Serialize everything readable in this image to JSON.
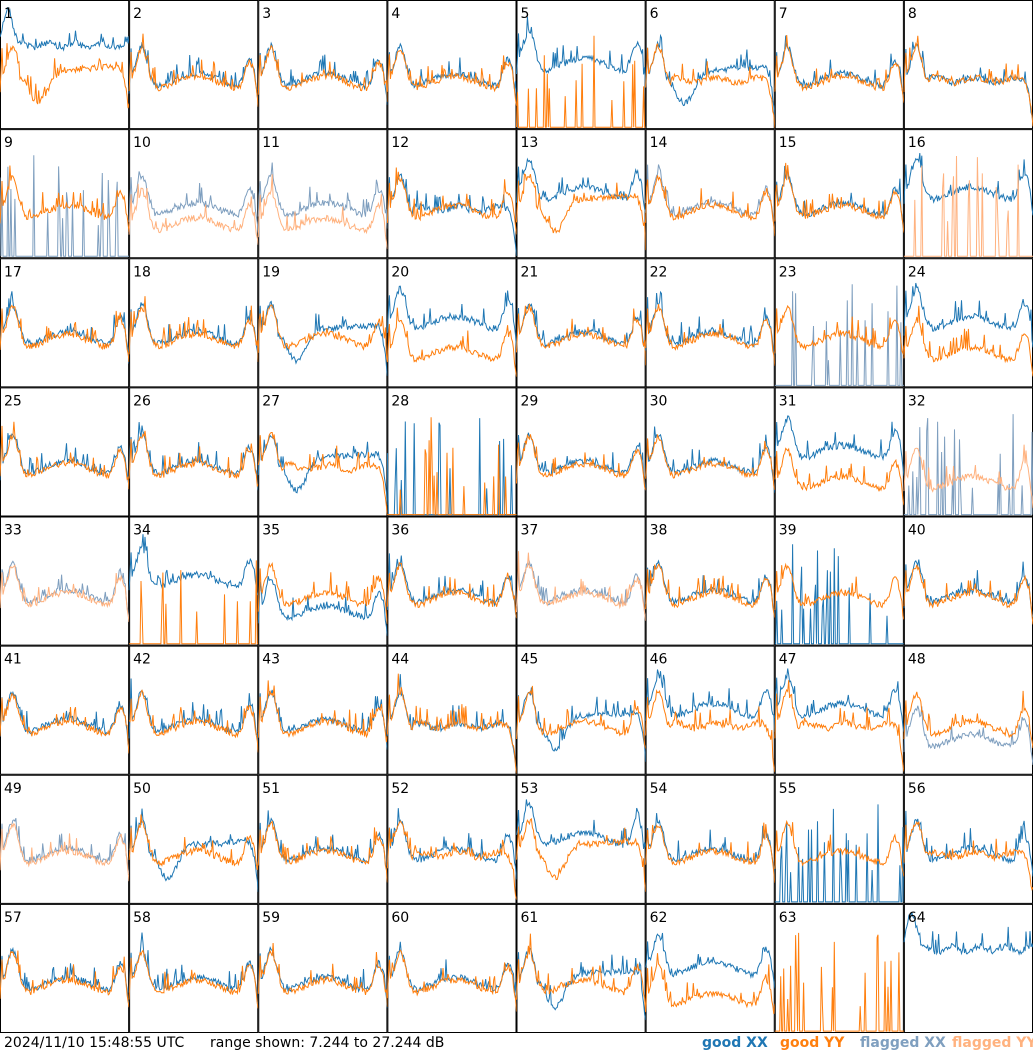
{
  "chart_data": {
    "type": "line",
    "title": "",
    "panels": [
      {
        "label": "1",
        "xx": "good",
        "yy": "good",
        "xx_shape": "hump",
        "yy_shape": "bathtub"
      },
      {
        "label": "2",
        "xx": "good",
        "yy": "good",
        "xx_shape": "normal",
        "yy_shape": "normal"
      },
      {
        "label": "3",
        "xx": "good",
        "yy": "good",
        "xx_shape": "normal",
        "yy_shape": "normal"
      },
      {
        "label": "4",
        "xx": "good",
        "yy": "good",
        "xx_shape": "normal",
        "yy_shape": "normal"
      },
      {
        "label": "5",
        "xx": "good",
        "yy": "good",
        "xx_shape": "raised",
        "yy_shape": "dead"
      },
      {
        "label": "6",
        "xx": "good",
        "yy": "good",
        "xx_shape": "bathtub",
        "yy_shape": "flat"
      },
      {
        "label": "7",
        "xx": "good",
        "yy": "good",
        "xx_shape": "normal",
        "yy_shape": "normal"
      },
      {
        "label": "8",
        "xx": "good",
        "yy": "good",
        "xx_shape": "flat",
        "yy_shape": "flat"
      },
      {
        "label": "9",
        "xx": "flagged",
        "yy": "good",
        "xx_shape": "dead",
        "yy_shape": "normal"
      },
      {
        "label": "10",
        "xx": "flagged",
        "yy": "flagged",
        "xx_shape": "normal",
        "yy_shape": "low"
      },
      {
        "label": "11",
        "xx": "flagged",
        "yy": "flagged",
        "xx_shape": "normal",
        "yy_shape": "low"
      },
      {
        "label": "12",
        "xx": "good",
        "yy": "good",
        "xx_shape": "flat",
        "yy_shape": "normal"
      },
      {
        "label": "13",
        "xx": "good",
        "yy": "good",
        "xx_shape": "raised",
        "yy_shape": "bathtub"
      },
      {
        "label": "14",
        "xx": "flagged",
        "yy": "good",
        "xx_shape": "normal",
        "yy_shape": "normal"
      },
      {
        "label": "15",
        "xx": "good",
        "yy": "good",
        "xx_shape": "normal",
        "yy_shape": "normal"
      },
      {
        "label": "16",
        "xx": "good",
        "yy": "flagged",
        "xx_shape": "raised",
        "yy_shape": "dead"
      },
      {
        "label": "17",
        "xx": "good",
        "yy": "good",
        "xx_shape": "normal",
        "yy_shape": "normal"
      },
      {
        "label": "18",
        "xx": "good",
        "yy": "good",
        "xx_shape": "normal",
        "yy_shape": "normal"
      },
      {
        "label": "19",
        "xx": "good",
        "yy": "good",
        "xx_shape": "bathtub",
        "yy_shape": "normal"
      },
      {
        "label": "20",
        "xx": "good",
        "yy": "good",
        "xx_shape": "raised",
        "yy_shape": "low"
      },
      {
        "label": "21",
        "xx": "good",
        "yy": "good",
        "xx_shape": "normal",
        "yy_shape": "normal"
      },
      {
        "label": "22",
        "xx": "good",
        "yy": "good",
        "xx_shape": "normal",
        "yy_shape": "normal"
      },
      {
        "label": "23",
        "xx": "flagged",
        "yy": "good",
        "xx_shape": "dead",
        "yy_shape": "normal"
      },
      {
        "label": "24",
        "xx": "good",
        "yy": "good",
        "xx_shape": "raised",
        "yy_shape": "low"
      },
      {
        "label": "25",
        "xx": "good",
        "yy": "good",
        "xx_shape": "normal",
        "yy_shape": "normal"
      },
      {
        "label": "26",
        "xx": "good",
        "yy": "good",
        "xx_shape": "normal",
        "yy_shape": "normal"
      },
      {
        "label": "27",
        "xx": "good",
        "yy": "good",
        "xx_shape": "bathtub",
        "yy_shape": "flat"
      },
      {
        "label": "28",
        "xx": "good",
        "yy": "good",
        "xx_shape": "dead",
        "yy_shape": "dead"
      },
      {
        "label": "29",
        "xx": "good",
        "yy": "good",
        "xx_shape": "normal",
        "yy_shape": "normal"
      },
      {
        "label": "30",
        "xx": "good",
        "yy": "good",
        "xx_shape": "normal",
        "yy_shape": "normal"
      },
      {
        "label": "31",
        "xx": "good",
        "yy": "good",
        "xx_shape": "raised",
        "yy_shape": "low"
      },
      {
        "label": "32",
        "xx": "flagged",
        "yy": "flagged",
        "xx_shape": "dead",
        "yy_shape": "low"
      },
      {
        "label": "33",
        "xx": "flagged",
        "yy": "flagged",
        "xx_shape": "normal",
        "yy_shape": "normal"
      },
      {
        "label": "34",
        "xx": "good",
        "yy": "good",
        "xx_shape": "raised",
        "yy_shape": "dead"
      },
      {
        "label": "35",
        "xx": "good",
        "yy": "good",
        "xx_shape": "low",
        "yy_shape": "normal"
      },
      {
        "label": "36",
        "xx": "good",
        "yy": "good",
        "xx_shape": "normal",
        "yy_shape": "normal"
      },
      {
        "label": "37",
        "xx": "flagged",
        "yy": "flagged",
        "xx_shape": "normal",
        "yy_shape": "normal"
      },
      {
        "label": "38",
        "xx": "good",
        "yy": "good",
        "xx_shape": "normal",
        "yy_shape": "normal"
      },
      {
        "label": "39",
        "xx": "good",
        "yy": "good",
        "xx_shape": "dead",
        "yy_shape": "normal"
      },
      {
        "label": "40",
        "xx": "good",
        "yy": "good",
        "xx_shape": "normal",
        "yy_shape": "normal"
      },
      {
        "label": "41",
        "xx": "good",
        "yy": "good",
        "xx_shape": "normal",
        "yy_shape": "normal"
      },
      {
        "label": "42",
        "xx": "good",
        "yy": "good",
        "xx_shape": "normal",
        "yy_shape": "normal"
      },
      {
        "label": "43",
        "xx": "good",
        "yy": "good",
        "xx_shape": "normal",
        "yy_shape": "normal"
      },
      {
        "label": "44",
        "xx": "good",
        "yy": "good",
        "xx_shape": "flat",
        "yy_shape": "flat"
      },
      {
        "label": "45",
        "xx": "good",
        "yy": "good",
        "xx_shape": "bathtub",
        "yy_shape": "normal"
      },
      {
        "label": "46",
        "xx": "good",
        "yy": "good",
        "xx_shape": "raised",
        "yy_shape": "flat"
      },
      {
        "label": "47",
        "xx": "good",
        "yy": "good",
        "xx_shape": "raised",
        "yy_shape": "flat"
      },
      {
        "label": "48",
        "xx": "flagged",
        "yy": "good",
        "xx_shape": "low",
        "yy_shape": "normal"
      },
      {
        "label": "49",
        "xx": "flagged",
        "yy": "flagged",
        "xx_shape": "normal",
        "yy_shape": "normal"
      },
      {
        "label": "50",
        "xx": "good",
        "yy": "good",
        "xx_shape": "bathtub",
        "yy_shape": "normal"
      },
      {
        "label": "51",
        "xx": "good",
        "yy": "good",
        "xx_shape": "normal",
        "yy_shape": "normal"
      },
      {
        "label": "52",
        "xx": "good",
        "yy": "good",
        "xx_shape": "normal",
        "yy_shape": "flat"
      },
      {
        "label": "53",
        "xx": "good",
        "yy": "good",
        "xx_shape": "raised",
        "yy_shape": "bathtub"
      },
      {
        "label": "54",
        "xx": "good",
        "yy": "good",
        "xx_shape": "normal",
        "yy_shape": "normal"
      },
      {
        "label": "55",
        "xx": "good",
        "yy": "good",
        "xx_shape": "dead",
        "yy_shape": "normal"
      },
      {
        "label": "56",
        "xx": "good",
        "yy": "good",
        "xx_shape": "normal",
        "yy_shape": "flat"
      },
      {
        "label": "57",
        "xx": "good",
        "yy": "good",
        "xx_shape": "normal",
        "yy_shape": "normal"
      },
      {
        "label": "58",
        "xx": "good",
        "yy": "good",
        "xx_shape": "normal",
        "yy_shape": "normal"
      },
      {
        "label": "59",
        "xx": "good",
        "yy": "good",
        "xx_shape": "normal",
        "yy_shape": "normal"
      },
      {
        "label": "60",
        "xx": "good",
        "yy": "good",
        "xx_shape": "normal",
        "yy_shape": "normal"
      },
      {
        "label": "61",
        "xx": "good",
        "yy": "good",
        "xx_shape": "bathtub",
        "yy_shape": "normal"
      },
      {
        "label": "62",
        "xx": "good",
        "yy": "good",
        "xx_shape": "raised",
        "yy_shape": "low"
      },
      {
        "label": "63",
        "xx": "good",
        "yy": "good",
        "xx_shape": "none",
        "yy_shape": "dead"
      },
      {
        "label": "64",
        "xx": "good",
        "yy": "good",
        "xx_shape": "hump",
        "yy_shape": "none"
      }
    ],
    "grid": {
      "rows": 8,
      "cols": 8
    },
    "range_db": [
      7.244,
      27.244
    ],
    "legend": [
      {
        "key": "good_xx",
        "label": "good XX",
        "color": "#1f77b4"
      },
      {
        "key": "good_yy",
        "label": "good YY",
        "color": "#ff7f0e"
      },
      {
        "key": "flagged_xx",
        "label": "flagged XX",
        "color": "#7f9fbf"
      },
      {
        "key": "flagged_yy",
        "label": "flagged YY",
        "color": "#ffb27f"
      }
    ]
  },
  "footer": {
    "timestamp": "2024/11/10 15:48:55 UTC",
    "range": "range shown: 7.244 to 27.244 dB"
  }
}
